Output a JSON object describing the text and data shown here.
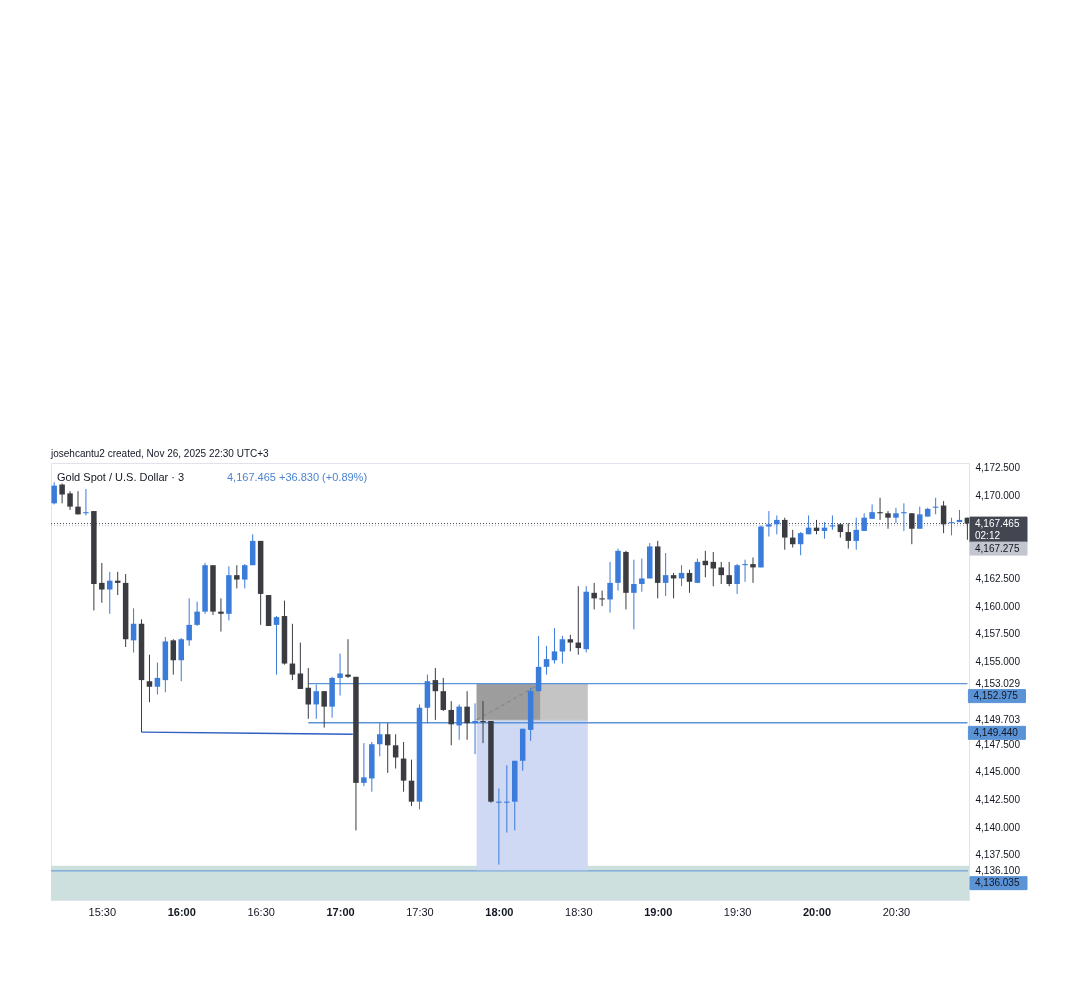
{
  "chart_data": {
    "type": "candlestick",
    "title": "Gold Spot / U.S. Dollar · 3",
    "subtitle": "4,167.465 +36.830 (+0.89%)",
    "annotations": [
      "josehcantu2 created, Nov 26, 2025 22:30 UTC+3"
    ],
    "xlim": [
      15.18,
      20.96
    ],
    "xticks": [
      {
        "value": 15.5,
        "label": "15:30"
      },
      {
        "value": 16,
        "label": "16:00"
      },
      {
        "value": 16.5,
        "label": "16:30"
      },
      {
        "value": 17,
        "label": "17:00"
      },
      {
        "value": 17.5,
        "label": "17:30"
      },
      {
        "value": 18,
        "label": "18:00"
      },
      {
        "value": 18.5,
        "label": "18:30"
      },
      {
        "value": 19,
        "label": "19:00"
      },
      {
        "value": 19.5,
        "label": "19:30"
      },
      {
        "value": 20,
        "label": "20:00"
      },
      {
        "value": 20.5,
        "label": "20:30"
      }
    ],
    "ylim": [
      4133.4,
      4172.95
    ],
    "yticks": [
      {
        "value": 4136.1,
        "label": "4,136.100"
      },
      {
        "value": 4137.5,
        "label": "4,137.500"
      },
      {
        "value": 4140,
        "label": "4,140.000"
      },
      {
        "value": 4142.5,
        "label": "4,142.500"
      },
      {
        "value": 4145,
        "label": "4,145.000"
      },
      {
        "value": 4147.5,
        "label": "4,147.500"
      },
      {
        "value": 4149.703,
        "label": "4,149.703"
      },
      {
        "value": 4153.029,
        "label": "4,153.029"
      },
      {
        "value": 4155,
        "label": "4,155.000"
      },
      {
        "value": 4157.5,
        "label": "4,157.500"
      },
      {
        "value": 4160,
        "label": "4,160.000"
      },
      {
        "value": 4162.5,
        "label": "4,162.500"
      },
      {
        "value": 4170,
        "label": "4,170.000"
      },
      {
        "value": 4172.5,
        "label": "4,172.500"
      }
    ],
    "series": [
      {
        "x": [
          15.2,
          15.25,
          15.3,
          15.35,
          15.4,
          15.45,
          15.5,
          15.55,
          15.6,
          15.65,
          15.7,
          15.75,
          15.8,
          15.85,
          15.9,
          15.95,
          16,
          16.05,
          16.1,
          16.15,
          16.2,
          16.25,
          16.3,
          16.35,
          16.4,
          16.45,
          16.5,
          16.55,
          16.6,
          16.65,
          16.7,
          16.75,
          16.8,
          16.85,
          16.9,
          16.95,
          17,
          17.05,
          17.1,
          17.15,
          17.2,
          17.25,
          17.3,
          17.35,
          17.4,
          17.45,
          17.5,
          17.55,
          17.6,
          17.65,
          17.7,
          17.75,
          17.8,
          17.85,
          17.9,
          17.95,
          18,
          18.05,
          18.1,
          18.15,
          18.2,
          18.25,
          18.3,
          18.35,
          18.4,
          18.45,
          18.5,
          18.55,
          18.6,
          18.65,
          18.7,
          18.75,
          18.8,
          18.85,
          18.9,
          18.95,
          19,
          19.05,
          19.1,
          19.15,
          19.2,
          19.25,
          19.3,
          19.35,
          19.4,
          19.45,
          19.5,
          19.55,
          19.6,
          19.65,
          19.7,
          19.75,
          19.8,
          19.85,
          19.9,
          19.95,
          20,
          20.05,
          20.1,
          20.15,
          20.2,
          20.25,
          20.3,
          20.35,
          20.4,
          20.45,
          20.5,
          20.55,
          20.6,
          20.65,
          20.7,
          20.75,
          20.8,
          20.85,
          20.9,
          20.95
        ],
        "ohlc": [
          [
            4169.3,
            4171.2,
            4169.2,
            4170.9
          ],
          [
            4171.0,
            4171.1,
            4169.3,
            4170.1
          ],
          [
            4170.2,
            4170.4,
            4168.7,
            4169.0
          ],
          [
            4169.0,
            4170.4,
            4168.3,
            4168.3
          ],
          [
            4168.4,
            4170.6,
            4168.2,
            4168.5
          ],
          [
            4168.6,
            4168.6,
            4159.6,
            4162.0
          ],
          [
            4162.1,
            4163.9,
            4160.3,
            4161.5
          ],
          [
            4161.5,
            4163.1,
            4159.3,
            4162.3
          ],
          [
            4162.3,
            4163.1,
            4161.0,
            4162.1
          ],
          [
            4162.1,
            4162.9,
            4156.3,
            4157.0
          ],
          [
            4156.9,
            4159.8,
            4155.8,
            4158.4
          ],
          [
            4158.4,
            4158.8,
            4148.6,
            4153.3
          ],
          [
            4153.2,
            4155.6,
            4151.3,
            4152.7
          ],
          [
            4152.7,
            4154.9,
            4152.0,
            4153.5
          ],
          [
            4153.3,
            4157.2,
            4152.2,
            4156.8
          ],
          [
            4156.9,
            4157.0,
            4153.8,
            4155.1
          ],
          [
            4155.1,
            4157.1,
            4153.2,
            4157.0
          ],
          [
            4156.9,
            4160.7,
            4156.4,
            4158.3
          ],
          [
            4158.3,
            4160.4,
            4158.2,
            4159.5
          ],
          [
            4159.5,
            4163.9,
            4159.3,
            4163.7
          ],
          [
            4163.7,
            4163.7,
            4159.2,
            4159.5
          ],
          [
            4159.5,
            4160.7,
            4157.7,
            4159.3
          ],
          [
            4159.3,
            4163.6,
            4158.7,
            4162.8
          ],
          [
            4162.8,
            4163.7,
            4161.6,
            4162.4
          ],
          [
            4162.4,
            4163.8,
            4161.6,
            4163.7
          ],
          [
            4163.7,
            4166.5,
            4163.7,
            4165.9
          ],
          [
            4165.9,
            4165.9,
            4158.3,
            4161.1
          ],
          [
            4161.0,
            4161.0,
            4158.2,
            4158.2
          ],
          [
            4158.3,
            4159.1,
            4153.8,
            4159.0
          ],
          [
            4159.1,
            4160.5,
            4154.7,
            4154.8
          ],
          [
            4154.8,
            4158.4,
            4153.3,
            4153.8
          ],
          [
            4153.9,
            4156.7,
            4152.5,
            4152.5
          ],
          [
            4152.6,
            4154.4,
            4149.8,
            4151.1
          ],
          [
            4151.1,
            4152.9,
            4149.8,
            4152.3
          ],
          [
            4152.3,
            4152.3,
            4149.0,
            4150.9
          ],
          [
            4150.9,
            4153.6,
            4149.9,
            4153.5
          ],
          [
            4153.5,
            4155.7,
            4151.9,
            4153.9
          ],
          [
            4153.8,
            4157.0,
            4153.5,
            4153.6
          ],
          [
            4153.6,
            4153.6,
            4139.7,
            4144.0
          ],
          [
            4144.0,
            4147.6,
            4143.7,
            4144.5
          ],
          [
            4144.4,
            4147.7,
            4143.2,
            4147.5
          ],
          [
            4147.5,
            4149.4,
            4146.4,
            4148.4
          ],
          [
            4148.4,
            4149.4,
            4144.9,
            4147.4
          ],
          [
            4147.4,
            4148.4,
            4145.3,
            4146.3
          ],
          [
            4146.2,
            4147.7,
            4143.2,
            4144.2
          ],
          [
            4144.2,
            4146.1,
            4141.9,
            4142.3
          ],
          [
            4142.3,
            4151.1,
            4141.6,
            4150.8
          ],
          [
            4150.8,
            4153.8,
            4149.4,
            4153.2
          ],
          [
            4153.3,
            4154.4,
            4149.7,
            4152.3
          ],
          [
            4152.3,
            4153.5,
            4150.5,
            4150.6
          ],
          [
            4150.6,
            4151.4,
            4147.4,
            4149.3
          ],
          [
            4149.2,
            4151.1,
            4147.9,
            4150.9
          ],
          [
            4150.9,
            4152.3,
            4147.9,
            4149.4
          ],
          [
            4149.4,
            4151.2,
            4146.6,
            4149.6
          ],
          [
            4149.6,
            4151.4,
            4147.6,
            4149.5
          ],
          [
            4149.6,
            4149.6,
            4142.2,
            4142.3
          ],
          [
            4142.2,
            4143.5,
            4136.6,
            4142.3
          ],
          [
            4142.2,
            4145.6,
            4139.5,
            4142.3
          ],
          [
            4142.3,
            4146.0,
            4139.7,
            4146.0
          ],
          [
            4146.0,
            4148.9,
            4145.1,
            4148.9
          ],
          [
            4148.8,
            4152.6,
            4147.8,
            4152.3
          ],
          [
            4152.3,
            4157.3,
            4152.3,
            4154.5
          ],
          [
            4154.5,
            4156.4,
            4153.8,
            4155.2
          ],
          [
            4155.1,
            4158.0,
            4154.8,
            4155.9
          ],
          [
            4155.9,
            4157.3,
            4154.8,
            4157.0
          ],
          [
            4157.0,
            4157.4,
            4155.9,
            4156.7
          ],
          [
            4156.7,
            4161.8,
            4155.6,
            4156.2
          ],
          [
            4156.1,
            4161.8,
            4155.8,
            4161.3
          ],
          [
            4161.2,
            4162.1,
            4159.7,
            4160.7
          ],
          [
            4160.7,
            4161.4,
            4160.0,
            4160.6
          ],
          [
            4160.6,
            4164.0,
            4159.4,
            4162.1
          ],
          [
            4162.1,
            4165.2,
            4161.4,
            4165.0
          ],
          [
            4164.9,
            4165.0,
            4159.7,
            4161.2
          ],
          [
            4161.2,
            4164.2,
            4157.9,
            4162.0
          ],
          [
            4162.0,
            4164.3,
            4161.3,
            4162.5
          ],
          [
            4162.5,
            4165.7,
            4162.5,
            4165.4
          ],
          [
            4165.4,
            4165.9,
            4160.7,
            4162.1
          ],
          [
            4162.1,
            4164.8,
            4160.9,
            4162.8
          ],
          [
            4162.8,
            4163.0,
            4160.7,
            4162.5
          ],
          [
            4162.5,
            4163.7,
            4161.8,
            4163.0
          ],
          [
            4163.0,
            4163.3,
            4161.2,
            4162.2
          ],
          [
            4162.1,
            4164.3,
            4162.1,
            4164.0
          ],
          [
            4164.1,
            4165.0,
            4162.6,
            4163.7
          ],
          [
            4164.0,
            4164.9,
            4161.8,
            4163.4
          ],
          [
            4163.5,
            4164.0,
            4162.0,
            4162.8
          ],
          [
            4162.8,
            4164.0,
            4161.8,
            4162.0
          ],
          [
            4162.0,
            4163.8,
            4161.1,
            4163.7
          ],
          [
            4163.7,
            4164.2,
            4162.2,
            4163.8
          ],
          [
            4163.8,
            4164.4,
            4162.1,
            4163.5
          ],
          [
            4163.5,
            4167.3,
            4163.5,
            4167.2
          ],
          [
            4167.2,
            4168.6,
            4166.3,
            4167.4
          ],
          [
            4167.4,
            4168.2,
            4166.5,
            4167.8
          ],
          [
            4167.8,
            4168.0,
            4165.1,
            4166.2
          ],
          [
            4166.2,
            4166.9,
            4165.3,
            4165.6
          ],
          [
            4165.6,
            4166.7,
            4164.6,
            4166.6
          ],
          [
            4166.5,
            4168.2,
            4166.5,
            4167.1
          ],
          [
            4167.1,
            4167.8,
            4166.5,
            4166.8
          ],
          [
            4166.8,
            4167.6,
            4166.1,
            4167.1
          ],
          [
            4167.2,
            4168.2,
            4166.9,
            4167.3
          ],
          [
            4167.4,
            4167.5,
            4166.2,
            4166.7
          ],
          [
            4166.7,
            4167.5,
            4165.2,
            4165.9
          ],
          [
            4165.9,
            4168.0,
            4165.1,
            4166.9
          ],
          [
            4166.8,
            4168.4,
            4166.8,
            4168.0
          ],
          [
            4167.9,
            4169.2,
            4167.9,
            4168.5
          ],
          [
            4168.5,
            4169.8,
            4167.8,
            4168.4
          ],
          [
            4168.4,
            4168.6,
            4167.0,
            4168.0
          ],
          [
            4168.0,
            4168.9,
            4167.5,
            4168.4
          ],
          [
            4168.4,
            4169.3,
            4166.8,
            4168.5
          ],
          [
            4168.4,
            4168.4,
            4165.6,
            4167.0
          ],
          [
            4167.0,
            4169.0,
            4167.0,
            4168.3
          ],
          [
            4168.1,
            4168.9,
            4168.1,
            4168.8
          ],
          [
            4168.9,
            4169.8,
            4168.3,
            4169.0
          ],
          [
            4169.1,
            4169.5,
            4166.6,
            4167.4
          ],
          [
            4167.5,
            4168.0,
            4166.4,
            4167.6
          ],
          [
            4167.6,
            4168.7,
            4167.6,
            4167.8
          ],
          [
            4168.0,
            4168.0,
            4166.0,
            4167.465
          ]
        ],
        "colors": [
          "#3b7bd9",
          "#3a3c42",
          "#3a3c42",
          "#3a3c42",
          "#3b7bd9",
          "#3a3c42",
          "#3a3c42",
          "#3b7bd9",
          "#3a3c42",
          "#3a3c42",
          "#3b7bd9",
          "#3a3c42",
          "#3a3c42",
          "#3b7bd9",
          "#3b7bd9",
          "#3a3c42",
          "#3b7bd9",
          "#3b7bd9",
          "#3b7bd9",
          "#3b7bd9",
          "#3a3c42",
          "#3a3c42",
          "#3b7bd9",
          "#3a3c42",
          "#3b7bd9",
          "#3b7bd9",
          "#3a3c42",
          "#3a3c42",
          "#3b7bd9",
          "#3a3c42",
          "#3a3c42",
          "#3a3c42",
          "#3a3c42",
          "#3b7bd9",
          "#3a3c42",
          "#3b7bd9",
          "#3b7bd9",
          "#3a3c42",
          "#3a3c42",
          "#3b7bd9",
          "#3b7bd9",
          "#3b7bd9",
          "#3a3c42",
          "#3a3c42",
          "#3a3c42",
          "#3a3c42",
          "#3b7bd9",
          "#3b7bd9",
          "#3a3c42",
          "#3a3c42",
          "#3a3c42",
          "#3b7bd9",
          "#3a3c42",
          "#3b7bd9",
          "#3a3c42",
          "#3a3c42",
          "#3b7bd9",
          "#3b7bd9",
          "#3b7bd9",
          "#3b7bd9",
          "#3b7bd9",
          "#3b7bd9",
          "#3b7bd9",
          "#3b7bd9",
          "#3b7bd9",
          "#3a3c42",
          "#3a3c42",
          "#3b7bd9",
          "#3a3c42",
          "#3a3c42",
          "#3b7bd9",
          "#3b7bd9",
          "#3a3c42",
          "#3b7bd9",
          "#3b7bd9",
          "#3b7bd9",
          "#3a3c42",
          "#3b7bd9",
          "#3a3c42",
          "#3b7bd9",
          "#3a3c42",
          "#3b7bd9",
          "#3a3c42",
          "#3a3c42",
          "#3a3c42",
          "#3a3c42",
          "#3b7bd9",
          "#3b7bd9",
          "#3a3c42",
          "#3b7bd9",
          "#3b7bd9",
          "#3b7bd9",
          "#3a3c42",
          "#3a3c42",
          "#3b7bd9",
          "#3b7bd9",
          "#3a3c42",
          "#3b7bd9",
          "#3b7bd9",
          "#3a3c42",
          "#3a3c42",
          "#3b7bd9",
          "#3b7bd9",
          "#3b7bd9",
          "#3a3c42",
          "#3a3c42",
          "#3b7bd9",
          "#3b7bd9",
          "#3a3c42",
          "#3b7bd9",
          "#3b7bd9",
          "#3b7bd9",
          "#3a3c42",
          "#3b7bd9",
          "#3b7bd9",
          "#3a3c42"
        ]
      },
      {
        "type": "line",
        "color": "#cfd9f4",
        "x": [
          17.86,
          18.56
        ],
        "values": [
          null,
          null
        ],
        "lower": [
          4136.1,
          4136.1
        ],
        "upper": [
          4149.703,
          4149.703
        ]
      },
      {
        "type": "line",
        "color": "#c4c4c4",
        "x": [
          17.86,
          18.56
        ],
        "values": [
          4149.703,
          4149.703
        ],
        "lower": [
          4149.703,
          4149.703
        ],
        "upper": [
          4153.029,
          4153.029
        ]
      },
      {
        "type": "line",
        "color": "#9d9d9d",
        "x": [
          17.86,
          18.26
        ],
        "values": [
          null,
          null
        ],
        "lower": [
          4149.703,
          4149.703
        ],
        "upper": [
          4153.029,
          4153.029
        ]
      },
      {
        "type": "line",
        "color": "#2f5fbf",
        "x": [
          15.75,
          17.08
        ],
        "values": [
          4148.6,
          4148.4
        ]
      },
      {
        "type": "line",
        "color": "#5a93d6",
        "x": [
          16.8,
          20.95
        ],
        "values": [
          4152.975,
          4152.975
        ],
        "value_labels": [
          null,
          "4,152.975"
        ]
      },
      {
        "type": "line",
        "color": "#5a93d6",
        "x": [
          16.8,
          20.95
        ],
        "values": [
          4149.44,
          4149.44
        ],
        "value_labels": [
          null,
          "4,149.440"
        ]
      },
      {
        "type": "line",
        "color": "#8a8a8a",
        "line_style": "dashed",
        "x": [
          17.86,
          18.23
        ],
        "values": [
          4149.703,
          4152.7
        ]
      }
    ],
    "bands": [
      {
        "axis": "y",
        "from": 4133.4,
        "to": 4136.5,
        "color": "#cde0de"
      }
    ],
    "ref_lines": [
      {
        "axis": "y",
        "value": 4167.465,
        "label": "4,167.465\n02:12",
        "color": "#434651",
        "line_style": "dotted"
      },
      {
        "axis": "y",
        "value": 4167.275,
        "label": "4,167.275",
        "color": "#c3c6ce",
        "line_style": "dotted"
      },
      {
        "axis": "y",
        "value": 4136.035,
        "label": "4,136.035",
        "color": "#5a93d6",
        "line_style": "solid"
      }
    ]
  }
}
